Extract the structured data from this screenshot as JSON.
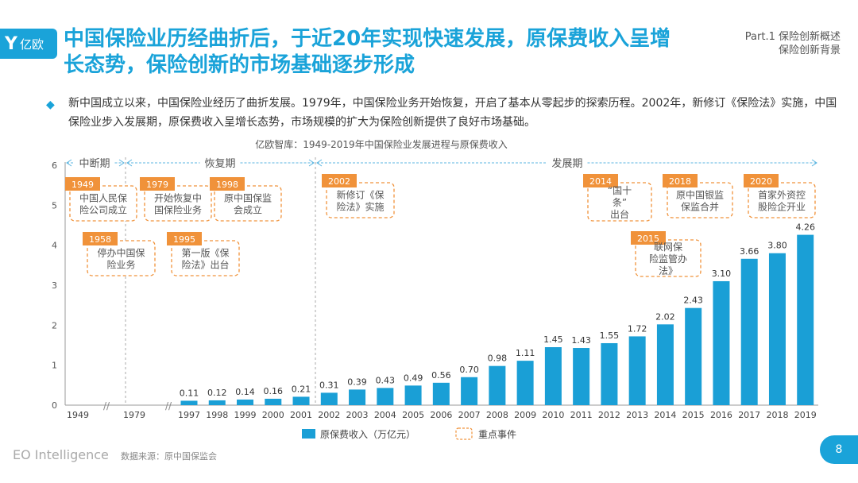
{
  "header": {
    "logo_mark": "Y",
    "logo_text": "亿欧",
    "title": "中国保险业历经曲折后，于近20年实现快速发展，原保费收入呈增长态势，保险创新的市场基础逐步形成",
    "part_line1": "Part.1 保险创新概述",
    "part_line2": "保险创新背景"
  },
  "bullet": {
    "text": "新中国成立以来，中国保险业经历了曲折发展。1979年，中国保险业务开始恢复，开启了基本从零起步的探索历程。2002年，新修订《保险法》实施，中国保险业步入发展期，原保费收入呈增长态势，市场规模的扩大为保险创新提供了良好市场基础。"
  },
  "chart_data": {
    "type": "bar",
    "title": "亿欧智库：1949-2019年中国保险业发展进程与原保费收入",
    "ylim": [
      0,
      6
    ],
    "yticks": [
      0,
      1,
      2,
      3,
      4,
      5,
      6
    ],
    "color": "#1a9fd6",
    "event_color": "#f0923a",
    "categories": [
      "1949",
      "1979",
      "1997",
      "1998",
      "1999",
      "2000",
      "2001",
      "2002",
      "2003",
      "2004",
      "2005",
      "2006",
      "2007",
      "2008",
      "2009",
      "2010",
      "2011",
      "2012",
      "2013",
      "2014",
      "2015",
      "2016",
      "2017",
      "2018",
      "2019"
    ],
    "series": [
      {
        "name": "原保费收入（万亿元）",
        "values": [
          null,
          null,
          0.11,
          0.12,
          0.14,
          0.16,
          0.21,
          0.31,
          0.39,
          0.43,
          0.49,
          0.56,
          0.7,
          0.98,
          1.11,
          1.45,
          1.43,
          1.55,
          1.72,
          2.02,
          2.43,
          3.1,
          3.66,
          3.8,
          4.26
        ],
        "labels": [
          "",
          "",
          "0.11",
          "0.12",
          "0.14",
          "0.16",
          "0.21",
          "0.31",
          "0.39",
          "0.43",
          "0.49",
          "0.56",
          "0.70",
          "0.98",
          "1.11",
          "1.45",
          "1.43",
          "1.55",
          "1.72",
          "2.02",
          "2.43",
          "3.10",
          "3.66",
          "3.80",
          "4.26"
        ]
      }
    ],
    "periods": [
      "中断期",
      "恢复期",
      "发展期"
    ],
    "events": [
      {
        "year": "1949",
        "lines": [
          "中国人民保",
          "险公司成立"
        ]
      },
      {
        "year": "1958",
        "lines": [
          "停办中国保",
          "险业务"
        ]
      },
      {
        "year": "1979",
        "lines": [
          "开始恢复中",
          "国保险业务"
        ]
      },
      {
        "year": "1995",
        "lines": [
          "第一版《保",
          "险法》出台"
        ]
      },
      {
        "year": "1998",
        "lines": [
          "原中国保监",
          "会成立"
        ]
      },
      {
        "year": "2002",
        "lines": [
          "新修订《保",
          "险法》实施"
        ]
      },
      {
        "year": "2014",
        "lines": [
          "“国十",
          "条”",
          "出台"
        ]
      },
      {
        "year": "2015",
        "lines": [
          "联网保",
          "险监管办",
          "法》"
        ]
      },
      {
        "year": "2018",
        "lines": [
          "原中国银监",
          "保监合并"
        ]
      },
      {
        "year": "2020",
        "lines": [
          "首家外资控",
          "股险企开业"
        ]
      }
    ],
    "legend": {
      "bar_label": "原保费收入（万亿元）",
      "event_label": "重点事件",
      "placement": "bottom"
    }
  },
  "footer": {
    "brand": "EO Intelligence",
    "source": "数据来源：原中国保监会",
    "page": "8"
  }
}
